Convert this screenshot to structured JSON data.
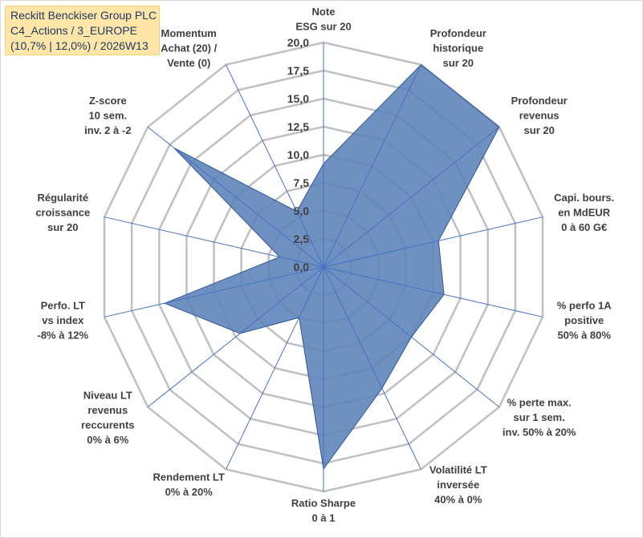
{
  "title": {
    "line1": "Reckitt Benckiser Group PLC",
    "line2": "C4_Actions / 3_EUROPE",
    "line3": "(10,7% | 12,0%) / 2026W13"
  },
  "chart_data": {
    "type": "radar",
    "rmin": 0,
    "rmax": 20,
    "tick_step": 2.5,
    "tick_labels": [
      "0,0",
      "2,5",
      "5,0",
      "7,5",
      "10,0",
      "12,5",
      "15,0",
      "17,5",
      "20,0"
    ],
    "axes": [
      {
        "label": [
          "Note",
          "ESG sur 20"
        ],
        "value": 9.2
      },
      {
        "label": [
          "Profondeur",
          "historique",
          "sur 20"
        ],
        "value": 20.0
      },
      {
        "label": [
          "Profondeur",
          "revenus",
          "sur 20"
        ],
        "value": 20.0
      },
      {
        "label": [
          "Capi. bours.",
          "en MdEUR",
          "0 à 60 G€"
        ],
        "value": 10.5
      },
      {
        "label": [
          "% perfo 1A",
          "positive",
          "50% à 80%"
        ],
        "value": 11.0
      },
      {
        "label": [
          "% perte max.",
          "sur 1 sem.",
          "inv. 50% à 20%"
        ],
        "value": 10.0
      },
      {
        "label": [
          "Volatilité LT",
          "inversée",
          "40% à 0%"
        ],
        "value": 12.0
      },
      {
        "label": [
          "Ratio Sharpe",
          "0 à 1"
        ],
        "value": 18.0
      },
      {
        "label": [
          "Rendement LT",
          "0% à 20%"
        ],
        "value": 5.0
      },
      {
        "label": [
          "Niveau LT",
          "revenus",
          "reccurents",
          "0% à 6%"
        ],
        "value": 9.5
      },
      {
        "label": [
          "Perfo. LT",
          "vs index",
          "-8% à 12%"
        ],
        "value": 14.5
      },
      {
        "label": [
          "Régularité",
          "croissance",
          "sur 20"
        ],
        "value": 4.0
      },
      {
        "label": [
          "Z-score",
          "10 sem.",
          "inv. 2 à -2"
        ],
        "value": 17.0
      },
      {
        "label": [
          "Momentum",
          "Achat (20) /",
          "Vente (0)"
        ],
        "value": 5.5
      }
    ],
    "colors": {
      "fill": "#5b82b8",
      "stroke": "#2f5597",
      "grid": "#c0c0c0",
      "spoke": "#4472c4",
      "text": "#404040"
    }
  }
}
